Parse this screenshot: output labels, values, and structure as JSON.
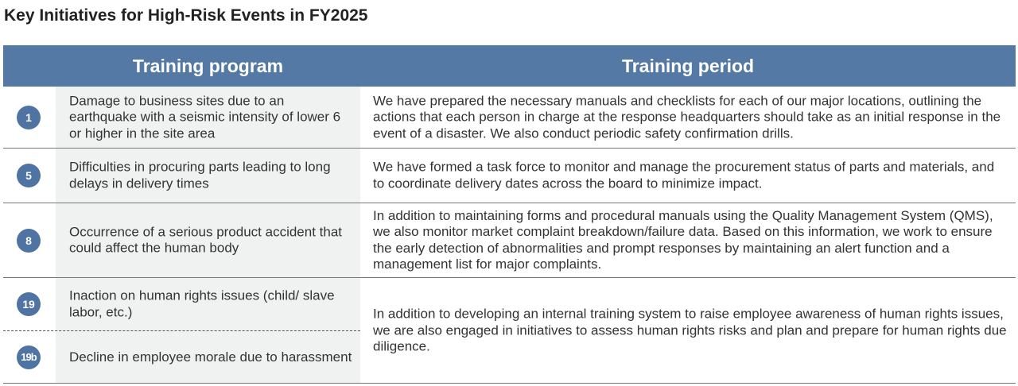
{
  "title": "Key Initiatives for High-Risk Events in FY2025",
  "columns": {
    "program": "Training program",
    "period": "Training period"
  },
  "rows": [
    {
      "badge": "1",
      "program": "Damage to business sites due to an earthquake with a seismic intensity of lower 6 or higher in the site area",
      "period": "We have prepared the necessary manuals and checklists for each of our major locations, outlining the actions that each person in charge at the response headquarters should take as an initial response in the event of a disaster. We also conduct periodic safety confirmation drills."
    },
    {
      "badge": "5",
      "program": "Difficulties in procuring parts leading to long delays in delivery times",
      "period": "We have formed a task force to monitor and manage the procurement status of parts and materials, and to coordinate delivery dates across the board to minimize impact."
    },
    {
      "badge": "8",
      "program": "Occurrence of a serious product accident that could affect the human body",
      "period": "In addition to maintaining forms and procedural manuals using the Quality Management System (QMS), we also monitor market complaint breakdown/failure data. Based on this information, we work to ensure the early detection of abnormalities and prompt responses by maintaining an alert function and a management list for major complaints."
    },
    {
      "badge": "19",
      "program": "Inaction on human rights issues (child/ slave labor, etc.)",
      "period": "In addition to developing an internal training system to raise employee awareness of human rights issues, we are also engaged in initiatives to assess human rights risks and plan and prepare for human rights due diligence."
    },
    {
      "badge": "19b",
      "program": "Decline in employee morale due to harassment"
    }
  ],
  "colors": {
    "header": "#5479a5",
    "badge": "#4f73a3",
    "program_bg": "#f0f1f1"
  }
}
